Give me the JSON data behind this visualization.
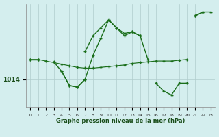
{
  "xlabel": "Graphe pression niveau de la mer (hPa)",
  "bg_color": "#d4eeee",
  "line_color": "#1a6e1a",
  "marker": "+",
  "hours": [
    0,
    1,
    2,
    3,
    4,
    5,
    6,
    7,
    8,
    9,
    10,
    11,
    12,
    13,
    14,
    15,
    16,
    17,
    18,
    19,
    20,
    21,
    22,
    23
  ],
  "series_cur": [
    1016.5,
    1016.5,
    null,
    1016.2,
    1015.0,
    1013.2,
    1013.0,
    1014.0,
    1017.0,
    1019.2,
    1021.5,
    1020.5,
    1019.5,
    1020.0,
    1019.5,
    1016.5,
    null,
    null,
    null,
    null,
    null,
    1022.0,
    1022.5,
    1022.5
  ],
  "series_upper": [
    null,
    null,
    null,
    null,
    null,
    null,
    null,
    1017.5,
    1019.5,
    1020.5,
    1021.5,
    1020.5,
    1019.8,
    1020.0,
    1019.5,
    null,
    null,
    null,
    null,
    null,
    null,
    1022.0,
    1022.5,
    null
  ],
  "series_lower": [
    null,
    null,
    null,
    null,
    1015.0,
    1013.2,
    1013.0,
    1014.0,
    null,
    null,
    null,
    null,
    null,
    null,
    null,
    null,
    1013.5,
    1012.5,
    1012.0,
    1013.5,
    1013.5,
    null,
    null,
    null
  ],
  "series_avg": [
    1016.5,
    1016.5,
    1016.3,
    1016.1,
    1015.9,
    1015.7,
    1015.5,
    1015.4,
    1015.4,
    1015.5,
    1015.6,
    1015.7,
    1015.8,
    1016.0,
    1016.1,
    1016.2,
    1016.3,
    1016.3,
    1016.3,
    1016.4,
    1016.5,
    null,
    null,
    null
  ],
  "ylim": [
    1010.5,
    1023.5
  ],
  "ytick_val": 1014,
  "ytick_label": "1014"
}
